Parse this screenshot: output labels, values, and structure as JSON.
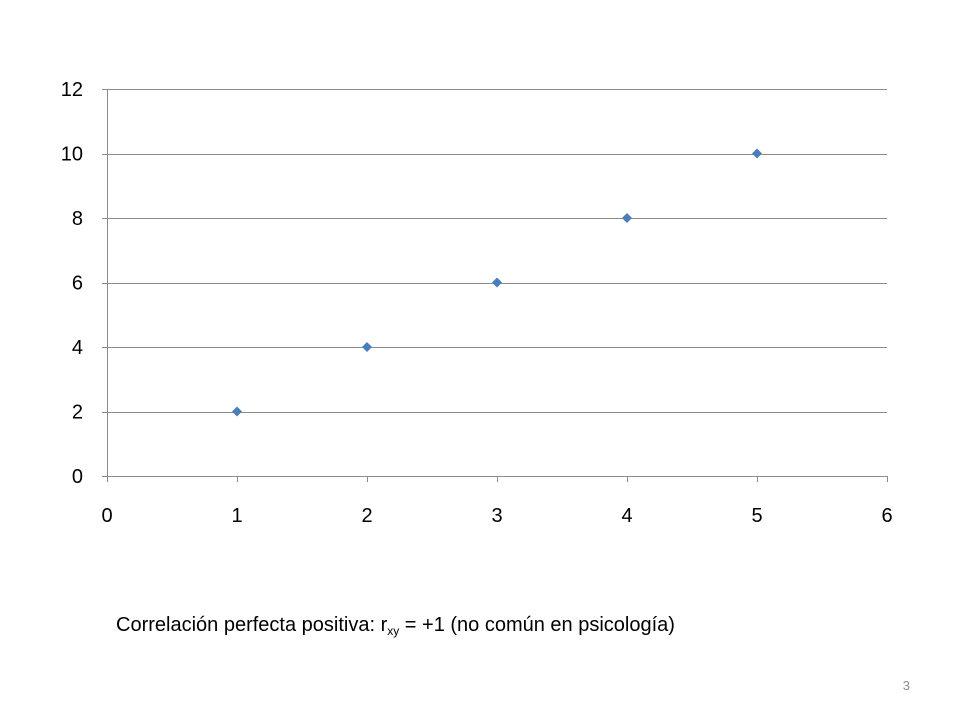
{
  "chart_data": {
    "type": "scatter",
    "title": "",
    "xlabel": "",
    "ylabel": "",
    "xlim": [
      0,
      6
    ],
    "ylim": [
      0,
      12
    ],
    "x_ticks": [
      0,
      1,
      2,
      3,
      4,
      5,
      6
    ],
    "y_ticks": [
      0,
      2,
      4,
      6,
      8,
      10,
      12
    ],
    "grid": "horizontal",
    "legend": "none",
    "marker": "diamond",
    "marker_color": "#4a7ebb",
    "gridline_color": "#8c8c8c",
    "series": [
      {
        "x": [
          1,
          2,
          3,
          4,
          5
        ],
        "y": [
          2,
          4,
          6,
          8,
          10
        ]
      }
    ]
  },
  "caption": {
    "prefix": "Correlación perfecta positiva: r",
    "subscript": "xy",
    "suffix": " = +1 (no común en psicología)"
  },
  "page_number": "3"
}
